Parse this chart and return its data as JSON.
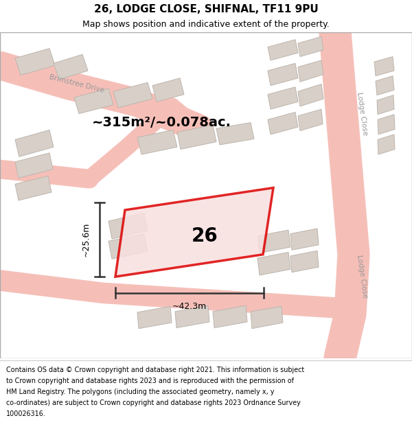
{
  "title": "26, LODGE CLOSE, SHIFNAL, TF11 9PU",
  "subtitle": "Map shows position and indicative extent of the property.",
  "area_label": "~315m²/~0.078ac.",
  "plot_number": "26",
  "dim_width": "~42.3m",
  "dim_height": "~25.6m",
  "footer_lines": [
    "Contains OS data © Crown copyright and database right 2021. This information is subject",
    "to Crown copyright and database rights 2023 and is reproduced with the permission of",
    "HM Land Registry. The polygons (including the associated geometry, namely x, y",
    "co-ordinates) are subject to Crown copyright and database rights 2023 Ordnance Survey",
    "100026316."
  ],
  "map_bg": "#f0ebe5",
  "road_color": "#f5bfb8",
  "building_fill": "#d8d0c8",
  "building_edge": "#bdb5ad",
  "plot_edge": "#dd0000",
  "plot_fill": "#f8e0e0",
  "dim_color": "#333333",
  "street_label_color": "#999999",
  "header_bg": "#ffffff",
  "footer_bg": "#ffffff",
  "figsize": [
    6.0,
    6.25
  ],
  "dpi": 100
}
